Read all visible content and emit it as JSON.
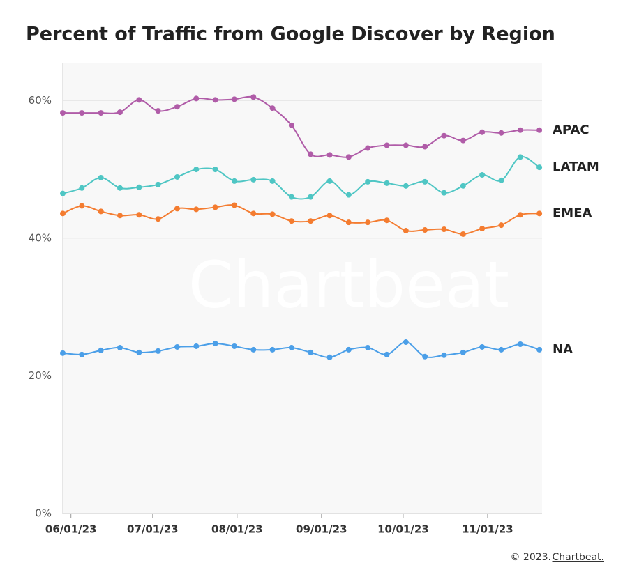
{
  "chart_data": {
    "type": "line",
    "title": "Percent of Traffic from Google Discover by Region",
    "watermark": "Chartbeat",
    "x": [
      "05/29/23",
      "06/05/23",
      "06/12/23",
      "06/19/23",
      "06/26/23",
      "07/03/23",
      "07/10/23",
      "07/17/23",
      "07/24/23",
      "07/31/23",
      "08/07/23",
      "08/14/23",
      "08/21/23",
      "08/28/23",
      "09/04/23",
      "09/11/23",
      "09/18/23",
      "09/25/23",
      "10/02/23",
      "10/09/23",
      "10/16/23",
      "10/23/23",
      "10/30/23",
      "11/06/23",
      "11/13/23",
      "11/20/23"
    ],
    "xlim": [
      "05/29/23",
      "11/21/23"
    ],
    "xticks": [
      "06/01/23",
      "07/01/23",
      "08/01/23",
      "09/01/23",
      "10/01/23",
      "11/01/23"
    ],
    "ylim": [
      0,
      65.5
    ],
    "yticks": [
      {
        "value": 0,
        "label": "0%"
      },
      {
        "value": 20,
        "label": "20%"
      },
      {
        "value": 40,
        "label": "40%"
      },
      {
        "value": 60,
        "label": "60%"
      }
    ],
    "grid": true,
    "series": [
      {
        "name": "APAC",
        "color": "#b05ca8",
        "values": [
          58.2,
          58.2,
          58.2,
          58.3,
          60.1,
          58.5,
          59.1,
          60.3,
          60.1,
          60.2,
          60.5,
          58.9,
          56.4,
          52.2,
          52.1,
          51.8,
          53.1,
          53.5,
          53.5,
          53.3,
          54.9,
          54.2,
          55.4,
          55.3,
          55.7,
          55.7
        ]
      },
      {
        "name": "LATAM",
        "color": "#4fc6c4",
        "values": [
          46.5,
          47.3,
          48.8,
          47.3,
          47.4,
          47.8,
          48.9,
          50.0,
          50.0,
          48.3,
          48.5,
          48.3,
          46.0,
          46.0,
          48.3,
          46.3,
          48.2,
          48.0,
          47.6,
          48.2,
          46.6,
          47.6,
          49.2,
          48.4,
          51.8,
          50.3
        ]
      },
      {
        "name": "EMEA",
        "color": "#f47c30",
        "values": [
          43.6,
          44.7,
          43.9,
          43.3,
          43.4,
          42.8,
          44.3,
          44.2,
          44.5,
          44.8,
          43.6,
          43.5,
          42.5,
          42.5,
          43.3,
          42.3,
          42.3,
          42.6,
          41.1,
          41.2,
          41.3,
          40.6,
          41.4,
          41.9,
          43.4,
          43.6
        ]
      },
      {
        "name": "NA",
        "color": "#4b9fe8",
        "values": [
          23.3,
          23.1,
          23.7,
          24.1,
          23.4,
          23.6,
          24.2,
          24.3,
          24.7,
          24.3,
          23.8,
          23.8,
          24.1,
          23.4,
          22.7,
          23.8,
          24.1,
          23.1,
          24.9,
          22.8,
          23.0,
          23.4,
          24.2,
          23.8,
          24.6,
          23.8
        ]
      }
    ],
    "footer": {
      "copyright": "© 2023.",
      "link": "Chartbeat."
    }
  }
}
